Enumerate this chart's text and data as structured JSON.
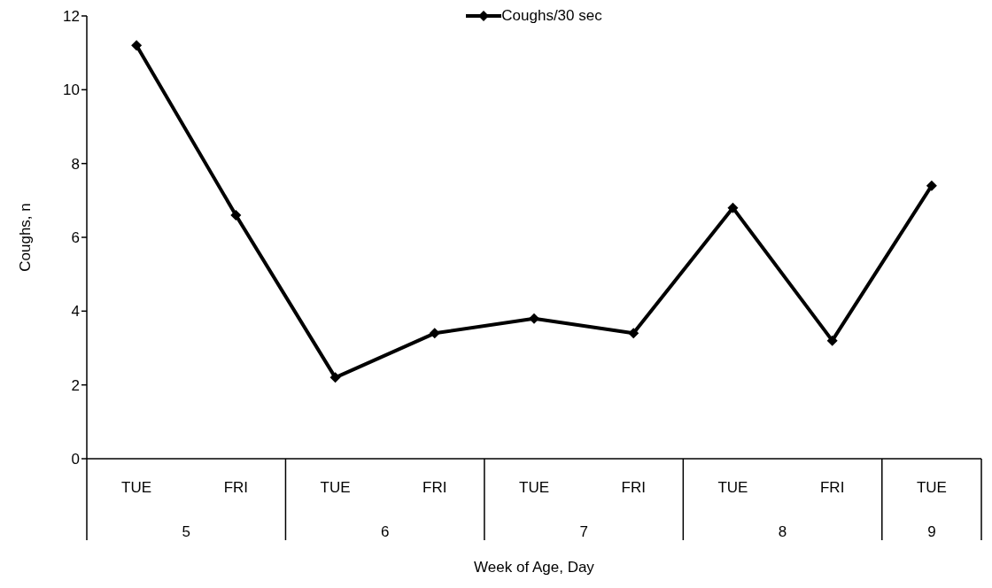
{
  "chart_data": {
    "type": "line",
    "xlabel": "Week of Age, Day",
    "ylabel": "Coughs, n",
    "categories": [
      "TUE",
      "FRI",
      "TUE",
      "FRI",
      "TUE",
      "FRI",
      "TUE",
      "FRI",
      "TUE"
    ],
    "series": [
      {
        "name": "Coughs/30 sec",
        "color": "#000000",
        "values": [
          11.2,
          6.6,
          2.2,
          3.4,
          3.8,
          3.4,
          6.8,
          3.2,
          7.4
        ]
      }
    ],
    "annotations": [
      "5",
      "6",
      "7",
      "8",
      "9"
    ],
    "ylim": [
      0,
      12
    ],
    "yticks": [
      0,
      2,
      4,
      6,
      8,
      10,
      12
    ],
    "grid": false,
    "legend": "top",
    "marker": "diamond",
    "line_style": "solid"
  }
}
